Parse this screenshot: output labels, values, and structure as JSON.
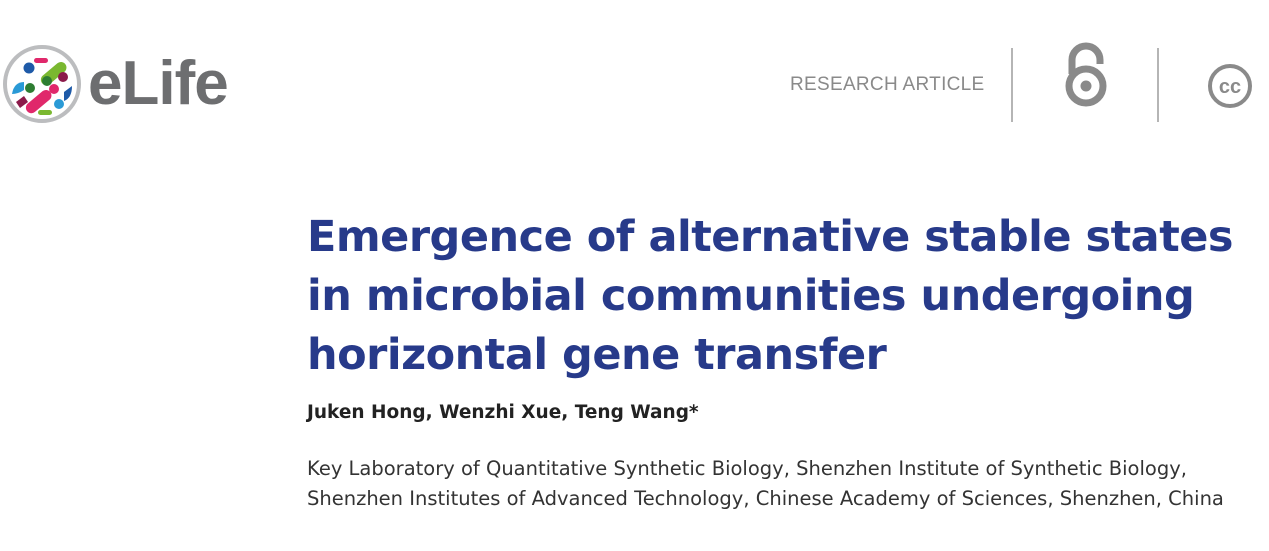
{
  "header": {
    "logo_text": "eLife",
    "article_type": "RESEARCH ARTICLE",
    "icons": [
      "open-access-icon",
      "creative-commons-icon"
    ],
    "cc_text": "cc"
  },
  "article": {
    "title": "Emergence of alternative stable states in microbial communities undergoing horizontal gene transfer",
    "authors": "Juken Hong, Wenzhi Xue, Teng Wang*",
    "affiliation": "Key Laboratory of Quantitative Synthetic Biology, Shenzhen Institute of Synthetic Biology, Shenzhen Institutes of Advanced Technology, Chinese Academy of Sciences, Shenzhen, China"
  },
  "colors": {
    "title": "#273a8a",
    "logo_gray": "#6d6e70",
    "icon_gray": "#8a8a8a"
  }
}
